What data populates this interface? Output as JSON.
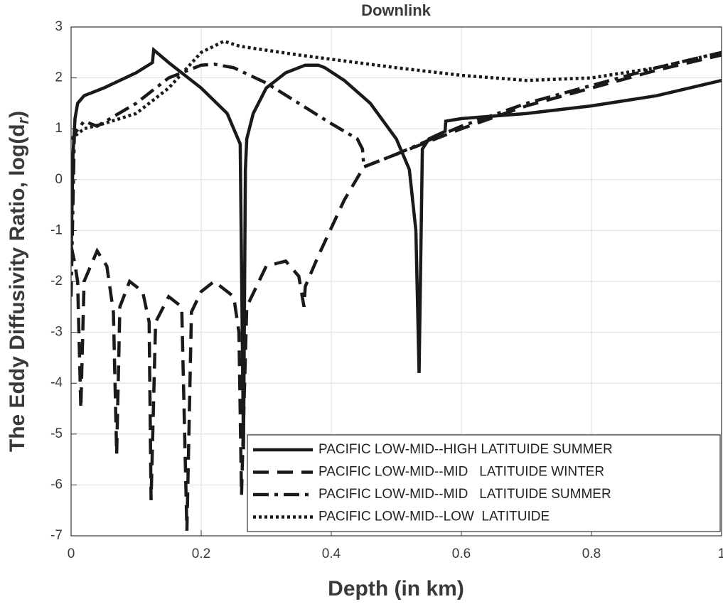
{
  "chart_data": {
    "type": "line",
    "title": "Downlink",
    "xlabel": "Depth (in km)",
    "ylabel": {
      "text": "The Eddy Diffusivity Ratio, log(d",
      "subscript": "r",
      "suffix": ")"
    },
    "xlim": [
      0,
      1
    ],
    "xticks": [
      0,
      0.2,
      0.4,
      0.6,
      0.8,
      1
    ],
    "ylim": [
      -7,
      3
    ],
    "yticks": [
      -7,
      -6,
      -5,
      -4,
      -3,
      -2,
      -1,
      0,
      1,
      2,
      3
    ],
    "grid": true,
    "legend": "lower right",
    "series": [
      {
        "name": "PACIFIC LOW-MID--HIGH LATITUIDE SUMMER",
        "color": "#1a1a1a",
        "dash": "solid",
        "x": [
          0,
          0.003,
          0.006,
          0.01,
          0.02,
          0.05,
          0.1,
          0.125,
          0.127,
          0.15,
          0.2,
          0.24,
          0.26,
          0.265,
          0.268,
          0.27,
          0.28,
          0.3,
          0.33,
          0.36,
          0.38,
          0.39,
          0.42,
          0.46,
          0.5,
          0.52,
          0.53,
          0.535,
          0.54,
          0.55,
          0.575,
          0.576,
          0.6,
          0.7,
          0.8,
          0.9,
          1
        ],
        "values": [
          -1.5,
          0.5,
          1.2,
          1.5,
          1.65,
          1.8,
          2.1,
          2.3,
          2.55,
          2.3,
          1.8,
          1.3,
          0.7,
          -5.3,
          0.2,
          0.8,
          1.3,
          1.8,
          2.1,
          2.25,
          2.25,
          2.2,
          1.95,
          1.5,
          0.8,
          0.2,
          -1,
          -3.8,
          0.6,
          0.8,
          0.95,
          1.15,
          1.2,
          1.3,
          1.45,
          1.65,
          1.95
        ]
      },
      {
        "name": "PACIFIC LOW-MID--MID   LATITUIDE WINTER",
        "color": "#1a1a1a",
        "dash": "dash",
        "x": [
          0,
          0.005,
          0.01,
          0.015,
          0.02,
          0.04,
          0.055,
          0.065,
          0.07,
          0.075,
          0.09,
          0.11,
          0.12,
          0.123,
          0.13,
          0.15,
          0.17,
          0.178,
          0.185,
          0.2,
          0.22,
          0.25,
          0.258,
          0.262,
          0.27,
          0.3,
          0.33,
          0.35,
          0.358,
          0.36,
          0.38,
          0.42,
          0.45,
          0.5,
          0.6,
          0.7,
          0.8,
          0.9,
          1
        ],
        "values": [
          -1.3,
          -1.6,
          -2.0,
          -4.5,
          -2.0,
          -1.4,
          -1.7,
          -2.6,
          -5.4,
          -2.5,
          -2.0,
          -2.2,
          -2.8,
          -6.3,
          -2.8,
          -2.3,
          -2.5,
          -6.9,
          -2.6,
          -2.2,
          -2.0,
          -2.3,
          -3.0,
          -6.2,
          -2.5,
          -1.7,
          -1.6,
          -1.9,
          -2.5,
          -2.1,
          -1.5,
          -0.4,
          0.25,
          0.5,
          1.0,
          1.45,
          1.8,
          2.15,
          2.45
        ]
      },
      {
        "name": "PACIFIC LOW-MID--MID   LATITUIDE SUMMER",
        "color": "#1a1a1a",
        "dash": "dashdot",
        "x": [
          0,
          0.005,
          0.02,
          0.04,
          0.1,
          0.15,
          0.2,
          0.22,
          0.25,
          0.3,
          0.35,
          0.4,
          0.44,
          0.448,
          0.45,
          0.5,
          0.6,
          0.7,
          0.8,
          0.9,
          1
        ],
        "values": [
          -2.3,
          0.9,
          1.15,
          1.05,
          1.5,
          2.0,
          2.25,
          2.27,
          2.2,
          1.9,
          1.5,
          1.1,
          0.8,
          0.6,
          0.25,
          0.5,
          1.05,
          1.5,
          1.85,
          2.2,
          2.5
        ]
      },
      {
        "name": "PACIFIC LOW-MID--LOW  LATITUIDE",
        "color": "#1a1a1a",
        "dash": "dot",
        "x": [
          0,
          0.02,
          0.05,
          0.1,
          0.15,
          0.2,
          0.235,
          0.26,
          0.35,
          0.5,
          0.6,
          0.7,
          0.8,
          0.9,
          1
        ],
        "values": [
          0.8,
          1.0,
          1.1,
          1.3,
          1.8,
          2.5,
          2.72,
          2.62,
          2.45,
          2.2,
          2.05,
          1.95,
          2.0,
          2.2,
          2.5
        ]
      }
    ]
  }
}
